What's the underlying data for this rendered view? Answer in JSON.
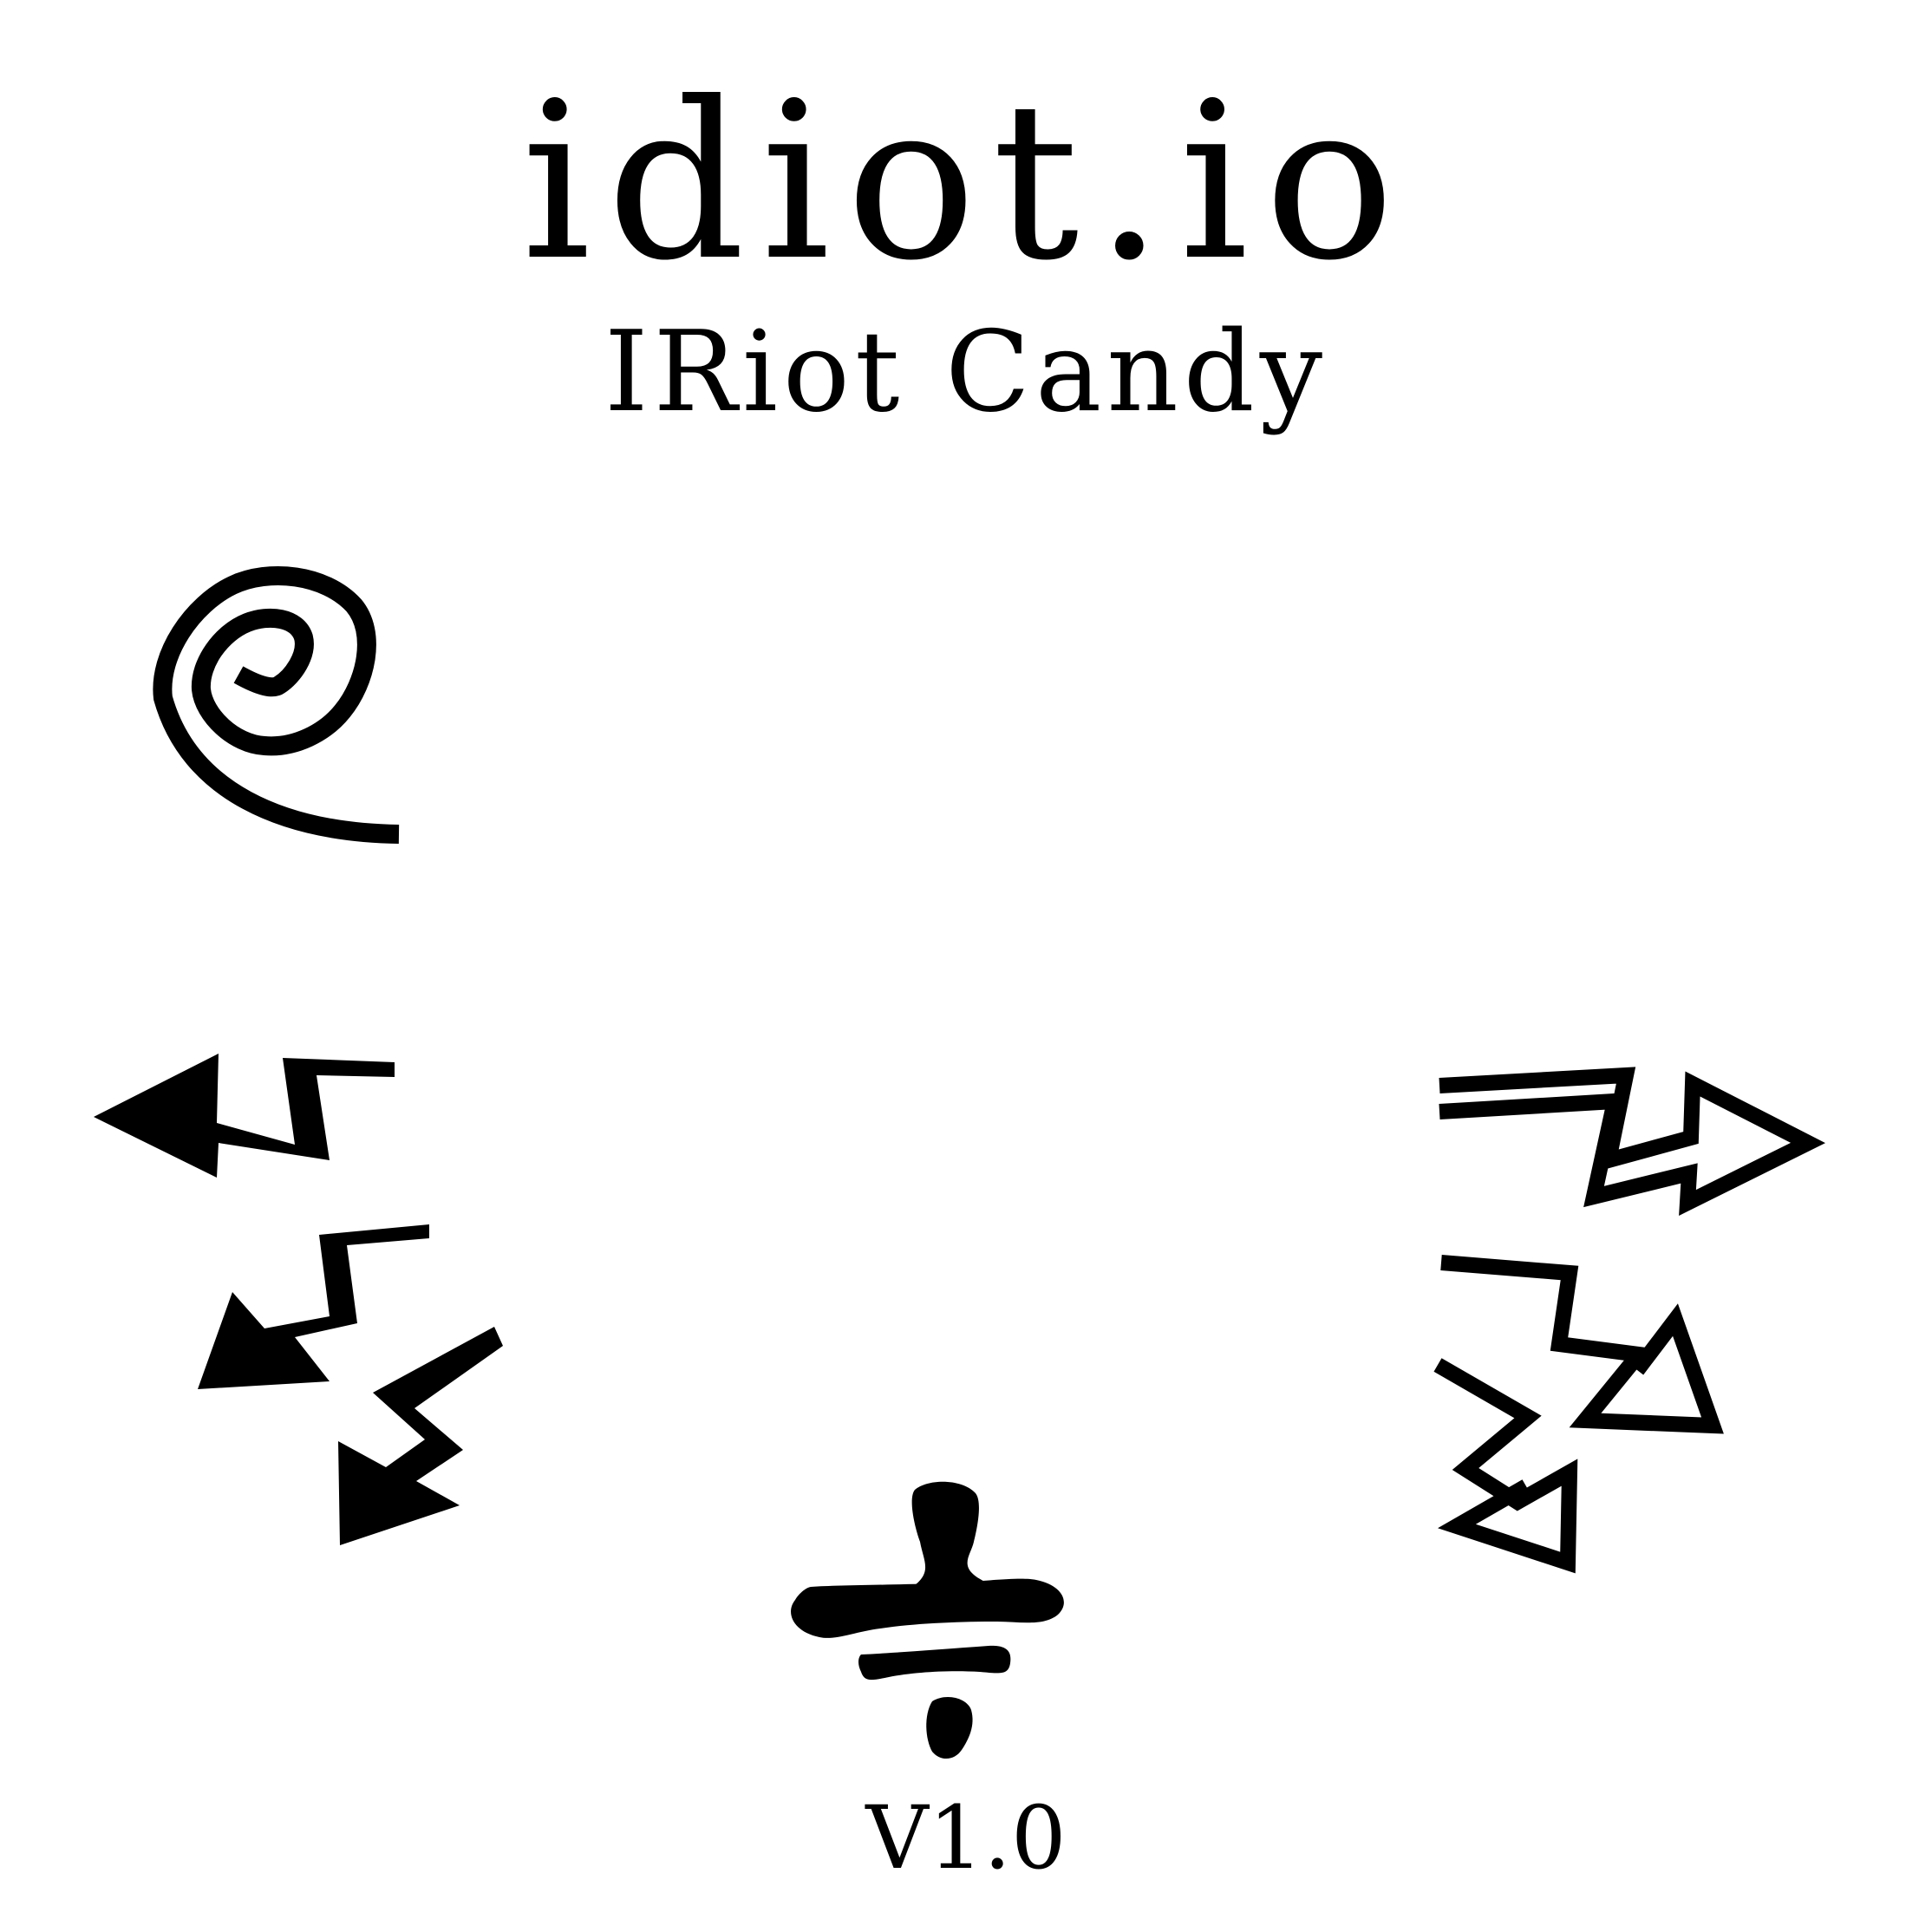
{
  "title": "idiot.io",
  "subtitle": "IRiot Candy",
  "version": "V1.0",
  "controls": {
    "top_left": {
      "icon": "spiral-icon"
    },
    "left": {
      "icon": "zigzag-arrows-left-icon"
    },
    "right": {
      "icon": "zigzag-arrows-right-icon"
    },
    "bottom": {
      "icon": "divide-icon"
    }
  },
  "colors": {
    "background": "#ffffff",
    "ink": "#000000"
  }
}
